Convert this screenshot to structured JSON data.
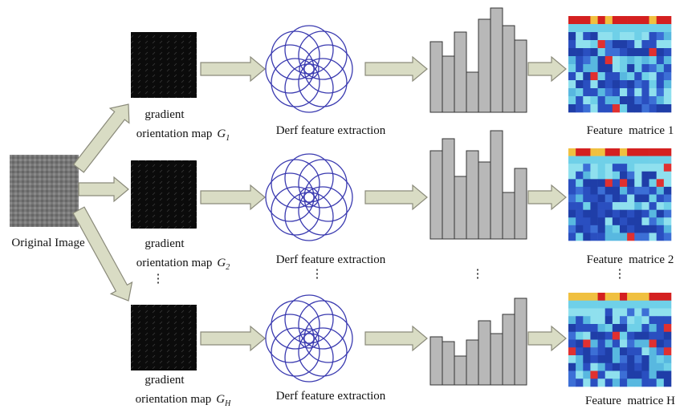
{
  "original_image": {
    "label": "Original Image"
  },
  "rows": [
    {
      "gradient_line1": "gradient",
      "gradient_line2": "orientation map",
      "symbol": "G",
      "subscript": "1",
      "extraction_label": "Derf feature extraction",
      "matrix_label": "Feature  matrice 1"
    },
    {
      "gradient_line1": "gradient",
      "gradient_line2": "orientation map",
      "symbol": "G",
      "subscript": "2",
      "extraction_label": "Derf feature extraction",
      "matrix_label": "Feature  matrice 2"
    },
    {
      "gradient_line1": "gradient",
      "gradient_line2": "orientation map",
      "symbol": "G",
      "subscript": "H",
      "extraction_label": "Derf feature extraction",
      "matrix_label": "Feature  matrice H"
    }
  ],
  "ellipsis": "⋮"
}
